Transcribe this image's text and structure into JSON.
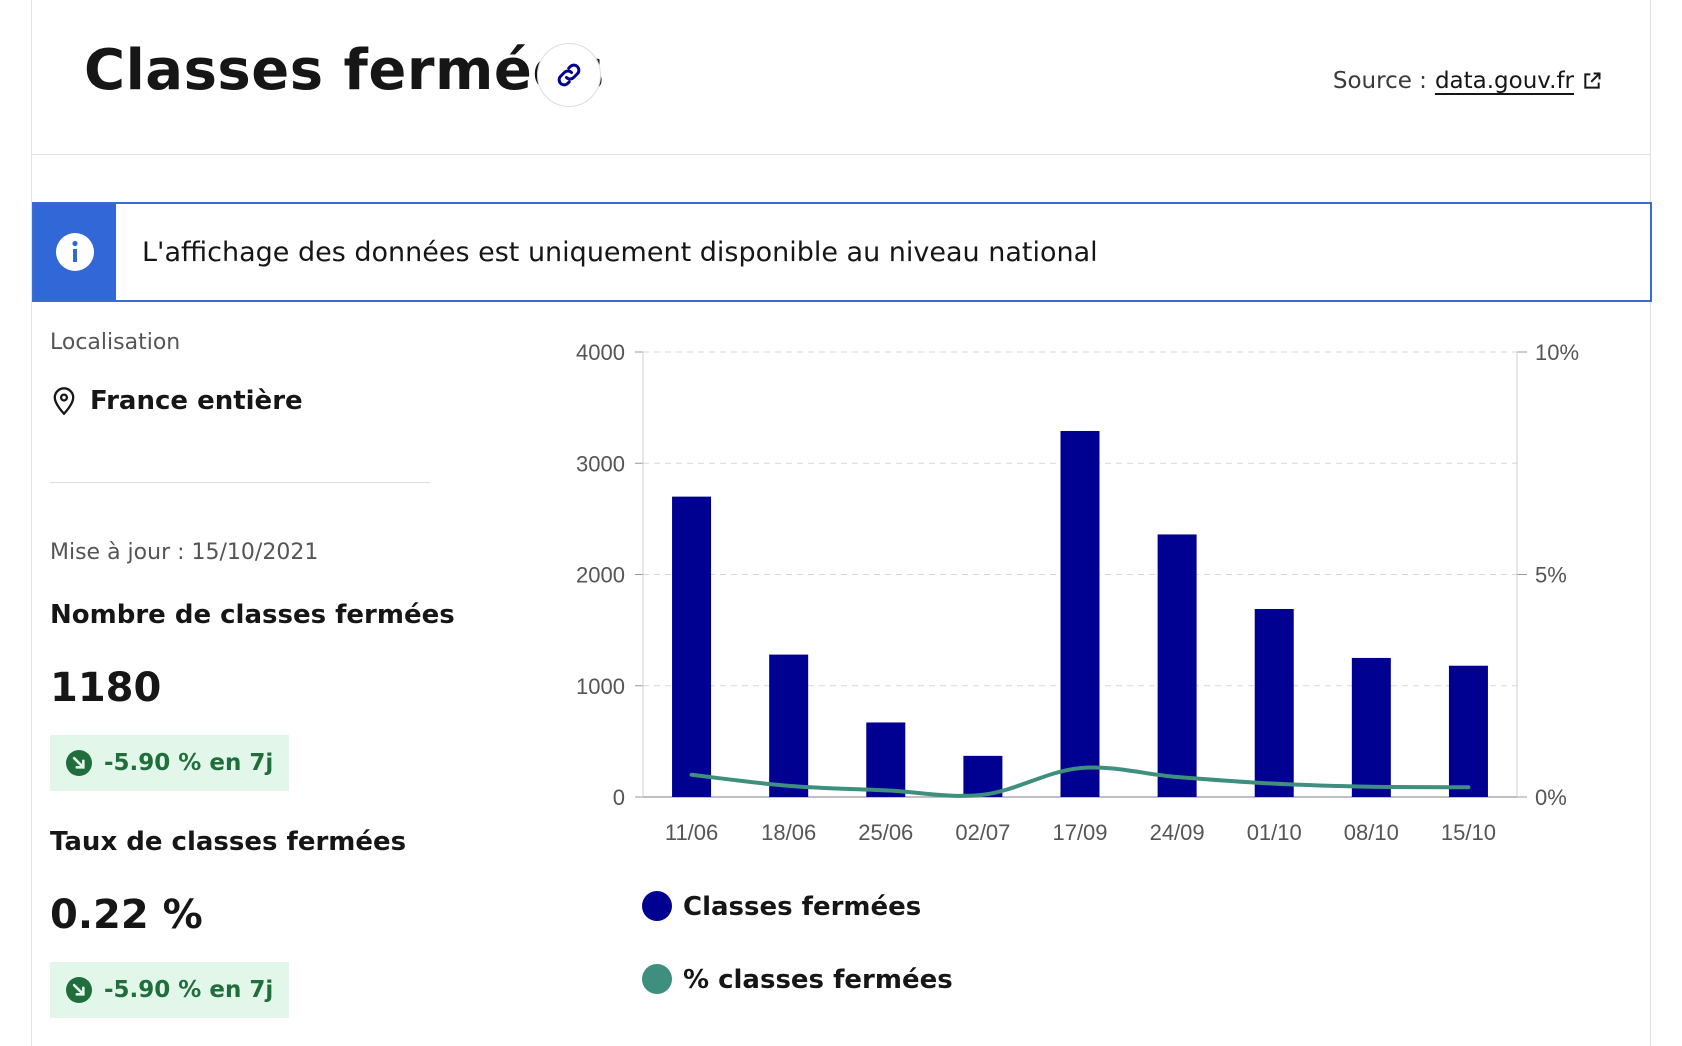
{
  "header": {
    "title": "Classes fermées",
    "source_prefix": "Source :",
    "source_link": "data.gouv.fr"
  },
  "notice": {
    "text": "L'affichage des données est uniquement disponible au niveau national"
  },
  "sidebar": {
    "location_label": "Localisation",
    "location_value": "France entière",
    "updated": "Mise à jour : 15/10/2021",
    "stat1_label": "Nombre de classes fermées",
    "stat1_value": "1180",
    "stat1_badge": "-5.90 % en 7j",
    "stat2_label": "Taux de classes fermées",
    "stat2_value": "0.22 %",
    "stat2_badge": "-5.90 % en 7j"
  },
  "colors": {
    "bar": "#000091",
    "line": "#3f8f7e",
    "badge_bg": "#e2f7ea",
    "info": "#3167d6"
  },
  "chart_data": {
    "type": "bar",
    "categories": [
      "11/06",
      "18/06",
      "25/06",
      "02/07",
      "17/09",
      "24/09",
      "01/10",
      "08/10",
      "15/10"
    ],
    "series": [
      {
        "name": "Classes fermées",
        "type": "bar",
        "axis": "left",
        "values": [
          2700,
          1280,
          670,
          370,
          3290,
          2360,
          1690,
          1250,
          1180
        ]
      },
      {
        "name": "% classes fermées",
        "type": "line",
        "axis": "right",
        "values": [
          0.5,
          0.25,
          0.15,
          0.05,
          0.65,
          0.45,
          0.3,
          0.23,
          0.22
        ]
      }
    ],
    "y_left": {
      "min": 0,
      "max": 4000,
      "ticks": [
        "0",
        "1000",
        "2000",
        "3000",
        "4000"
      ]
    },
    "y_right": {
      "min": 0,
      "max": 10,
      "ticks": [
        "0%",
        "5%",
        "10%"
      ]
    },
    "grid": true,
    "legend": "bottom"
  }
}
